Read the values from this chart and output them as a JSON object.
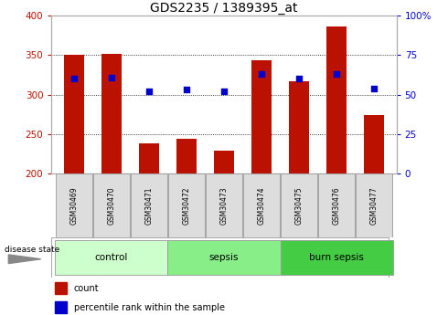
{
  "title": "GDS2235 / 1389395_at",
  "categories": [
    "GSM30469",
    "GSM30470",
    "GSM30471",
    "GSM30472",
    "GSM30473",
    "GSM30474",
    "GSM30475",
    "GSM30476",
    "GSM30477"
  ],
  "bar_values": [
    350,
    352,
    238,
    244,
    229,
    344,
    317,
    386,
    274
  ],
  "dot_values": [
    60,
    61,
    52,
    53,
    52,
    63,
    60,
    63,
    54
  ],
  "ylim_left": [
    200,
    400
  ],
  "ylim_right": [
    0,
    100
  ],
  "yticks_left": [
    200,
    250,
    300,
    350,
    400
  ],
  "yticks_right": [
    0,
    25,
    50,
    75,
    100
  ],
  "bar_color": "#bb1100",
  "dot_color": "#0000cc",
  "groups": [
    {
      "label": "control",
      "indices": [
        0,
        1,
        2
      ],
      "color": "#ccffcc"
    },
    {
      "label": "sepsis",
      "indices": [
        3,
        4,
        5
      ],
      "color": "#88ee88"
    },
    {
      "label": "burn sepsis",
      "indices": [
        6,
        7,
        8
      ],
      "color": "#44cc44"
    }
  ],
  "disease_state_label": "disease state",
  "legend_bar_label": "count",
  "legend_dot_label": "percentile rank within the sample",
  "sample_box_color": "#dddddd",
  "sample_box_edge": "#999999"
}
